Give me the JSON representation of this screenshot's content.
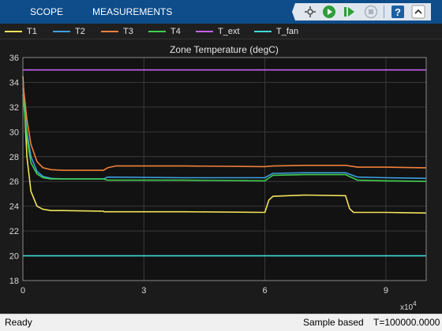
{
  "toolbar": {
    "tabs": [
      "SCOPE",
      "MEASUREMENTS"
    ],
    "icons": [
      "zoom-pan-icon",
      "run-icon",
      "step-forward-icon",
      "stop-icon",
      "help-icon",
      "collapse-icon"
    ]
  },
  "legend": [
    {
      "label": "T1",
      "color": "#f2e35a"
    },
    {
      "label": "T2",
      "color": "#3e9fe0"
    },
    {
      "label": "T3",
      "color": "#f0803a"
    },
    {
      "label": "T4",
      "color": "#3fcf4f"
    },
    {
      "label": "T_ext",
      "color": "#c460f0"
    },
    {
      "label": "T_fan",
      "color": "#3fd9d9"
    }
  ],
  "chart_data": {
    "type": "line",
    "title": "Zone Temperature (degC)",
    "xlabel": "",
    "ylabel": "",
    "x_exponent_label": "x10",
    "x_exponent": "4",
    "xlim": [
      0,
      10
    ],
    "ylim": [
      18,
      36
    ],
    "xticks": [
      0,
      3,
      6,
      9
    ],
    "yticks": [
      18,
      20,
      22,
      24,
      26,
      28,
      30,
      32,
      34,
      36
    ],
    "grid": true,
    "series": [
      {
        "name": "T1",
        "color": "#f2e35a",
        "x": [
          0,
          0.1,
          0.2,
          0.35,
          0.5,
          0.7,
          1.0,
          2.0,
          2.01,
          4.0,
          6.0,
          6.1,
          6.2,
          7.0,
          8.0,
          8.1,
          8.2,
          9.0,
          10.0
        ],
        "y": [
          34.5,
          28,
          25.2,
          24.0,
          23.75,
          23.65,
          23.65,
          23.6,
          23.55,
          23.55,
          23.5,
          24.5,
          24.8,
          24.9,
          24.85,
          23.8,
          23.5,
          23.5,
          23.45
        ]
      },
      {
        "name": "T2",
        "color": "#3e9fe0",
        "x": [
          0,
          0.1,
          0.2,
          0.35,
          0.5,
          0.7,
          1.0,
          2.0,
          2.1,
          4.0,
          6.0,
          6.2,
          7.0,
          8.0,
          8.3,
          9.0,
          10.0
        ],
        "y": [
          33.5,
          30.0,
          28.0,
          26.8,
          26.4,
          26.25,
          26.2,
          26.2,
          26.35,
          26.3,
          26.3,
          26.65,
          26.7,
          26.7,
          26.35,
          26.3,
          26.25
        ]
      },
      {
        "name": "T3",
        "color": "#f0803a",
        "x": [
          0,
          0.1,
          0.2,
          0.35,
          0.5,
          0.7,
          1.0,
          2.0,
          2.1,
          2.3,
          4.0,
          6.0,
          6.2,
          7.0,
          8.0,
          8.3,
          9.0,
          10.0
        ],
        "y": [
          34.0,
          31.0,
          29.0,
          27.6,
          27.1,
          26.95,
          26.9,
          26.9,
          27.1,
          27.25,
          27.25,
          27.2,
          27.25,
          27.3,
          27.3,
          27.15,
          27.15,
          27.1
        ]
      },
      {
        "name": "T4",
        "color": "#3fcf4f",
        "x": [
          0,
          0.1,
          0.2,
          0.35,
          0.5,
          0.7,
          1.0,
          2.0,
          2.1,
          4.0,
          6.0,
          6.2,
          7.0,
          8.0,
          8.3,
          9.0,
          10.0
        ],
        "y": [
          33.0,
          29.5,
          27.5,
          26.6,
          26.3,
          26.2,
          26.2,
          26.2,
          26.1,
          26.1,
          26.05,
          26.5,
          26.55,
          26.55,
          26.1,
          26.05,
          26.0
        ]
      },
      {
        "name": "T_ext",
        "color": "#c460f0",
        "x": [
          0,
          10.0
        ],
        "y": [
          35.0,
          35.0
        ]
      },
      {
        "name": "T_fan",
        "color": "#3fd9d9",
        "x": [
          0,
          10.0
        ],
        "y": [
          20.0,
          20.0
        ]
      }
    ]
  },
  "status": {
    "state": "Ready",
    "mode": "Sample based",
    "time": "T=100000.0000"
  }
}
